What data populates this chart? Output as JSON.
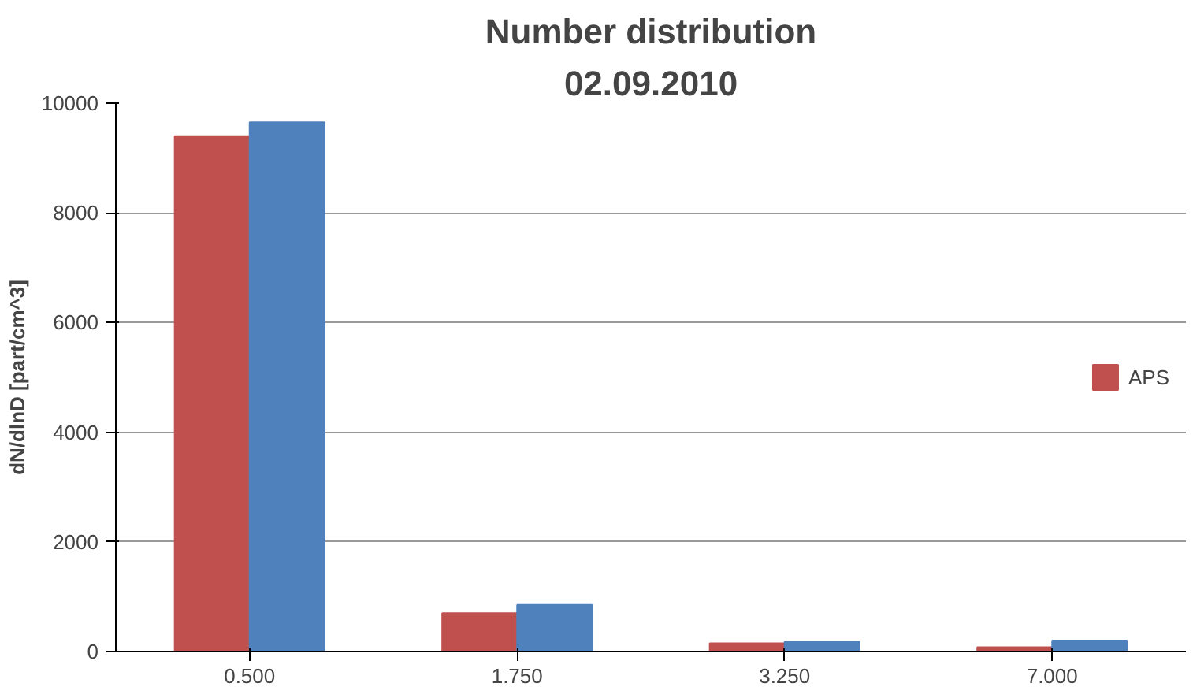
{
  "chart_data": {
    "type": "bar",
    "title": "Number distribution",
    "subtitle": "02.09.2010",
    "ylabel": "dN/dlnD [part/cm^3]",
    "categories": [
      "0.500",
      "1.750",
      "3.250",
      "7.000"
    ],
    "series": [
      {
        "name": "APS",
        "color": "#c0504d",
        "values": [
          9400,
          700,
          150,
          80
        ]
      },
      {
        "color": "#4f81bd",
        "values": [
          9650,
          850,
          180,
          200
        ]
      }
    ],
    "ylim": [
      0,
      10000
    ],
    "yticks": [
      0,
      2000,
      4000,
      6000,
      8000,
      10000
    ],
    "grid": "y",
    "legend": "right"
  }
}
